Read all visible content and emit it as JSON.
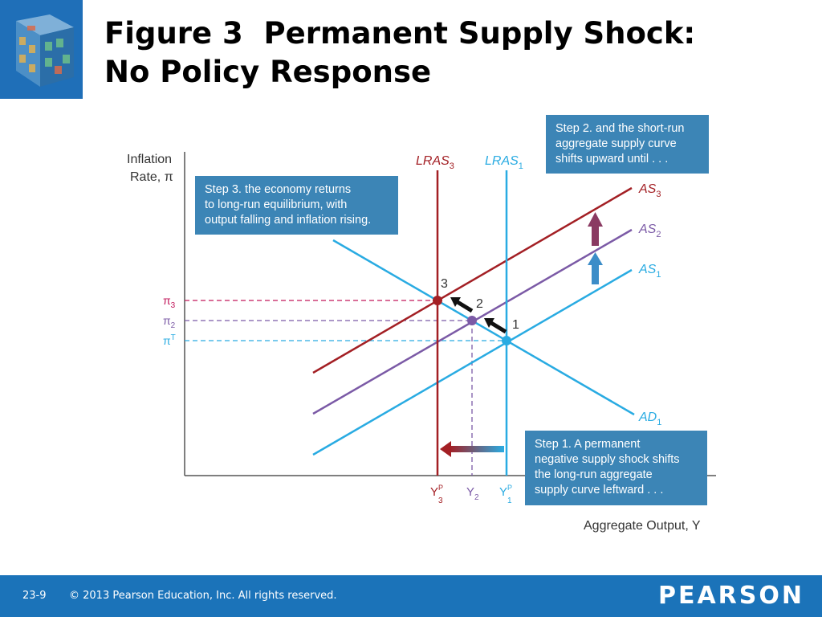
{
  "title": {
    "line1": "Figure 3  Permanent Supply Shock:",
    "line2": "No Policy Response"
  },
  "logo": {
    "icon": "rubiks-cube-logo"
  },
  "diagram": {
    "y_axis_label": [
      "Inflation",
      "Rate, π"
    ],
    "x_axis_label": "Aggregate Output, Y",
    "curves": {
      "lras3": "LRAS",
      "lras3_sub": "3",
      "lras1": "LRAS",
      "lras1_sub": "1",
      "as3": "AS",
      "as3_sub": "3",
      "as2": "AS",
      "as2_sub": "2",
      "as1": "AS",
      "as1_sub": "1",
      "ad1": "AD",
      "ad1_sub": "1"
    },
    "y_ticks": {
      "pi3": "π",
      "pi3_sub": "3",
      "pi2": "π",
      "pi2_sub": "2",
      "piT": "π",
      "piT_sup": "T"
    },
    "x_ticks": {
      "y3p": "Y",
      "y3p_sup": "P",
      "y3p_sub": "3",
      "y2": "Y",
      "y2_sub": "2",
      "y1p": "Y",
      "y1p_sup": "P",
      "y1p_sub": "1"
    },
    "points": {
      "p1": "1",
      "p2": "2",
      "p3": "3"
    },
    "colors": {
      "lras3": "#a31f24",
      "lras1": "#29abe2",
      "as3": "#a31f24",
      "as2": "#7b5aa6",
      "as1": "#29abe2",
      "ad1": "#29abe2",
      "callout": "#3c85b6"
    }
  },
  "callouts": {
    "step1": [
      "Step 1. A permanent",
      "negative supply shock shifts",
      "the long-run aggregate",
      "supply curve leftward . . ."
    ],
    "step2": [
      "Step 2. and the short-run",
      "aggregate supply curve",
      "shifts upward until . . ."
    ],
    "step3": [
      "Step 3. the economy returns",
      "to long-run equilibrium, with",
      "output falling and inflation rising."
    ]
  },
  "footer": {
    "slide_number": "23-9",
    "copyright": "© 2013 Pearson Education, Inc. All rights reserved.",
    "brand": "PEARSON"
  }
}
